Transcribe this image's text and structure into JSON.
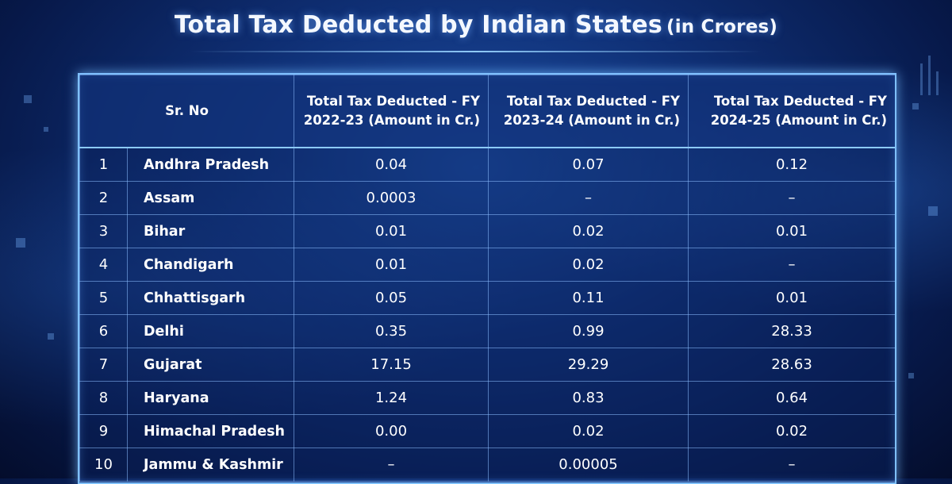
{
  "title": {
    "main": "Total Tax Deducted by Indian States",
    "suffix": "(in Crores)"
  },
  "table": {
    "header": {
      "sr_no": "Sr. No",
      "fy_2022_23": "Total Tax Deducted - FY 2022-23 (Amount in Cr.)",
      "fy_2023_24": "Total Tax Deducted - FY 2023-24 (Amount in Cr.)",
      "fy_2024_25": "Total Tax Deducted - FY 2024-25 (Amount in Cr.)"
    },
    "rows": [
      {
        "sr": "1",
        "state": "Andhra Pradesh",
        "fy_2022_23": "0.04",
        "fy_2023_24": "0.07",
        "fy_2024_25": "0.12"
      },
      {
        "sr": "2",
        "state": "Assam",
        "fy_2022_23": "0.0003",
        "fy_2023_24": "–",
        "fy_2024_25": "–"
      },
      {
        "sr": "3",
        "state": "Bihar",
        "fy_2022_23": "0.01",
        "fy_2023_24": "0.02",
        "fy_2024_25": "0.01"
      },
      {
        "sr": "4",
        "state": "Chandigarh",
        "fy_2022_23": "0.01",
        "fy_2023_24": "0.02",
        "fy_2024_25": "–"
      },
      {
        "sr": "5",
        "state": "Chhattisgarh",
        "fy_2022_23": "0.05",
        "fy_2023_24": "0.11",
        "fy_2024_25": "0.01"
      },
      {
        "sr": "6",
        "state": "Delhi",
        "fy_2022_23": "0.35",
        "fy_2023_24": "0.99",
        "fy_2024_25": "28.33"
      },
      {
        "sr": "7",
        "state": "Gujarat",
        "fy_2022_23": "17.15",
        "fy_2023_24": "29.29",
        "fy_2024_25": "28.63"
      },
      {
        "sr": "8",
        "state": "Haryana",
        "fy_2022_23": "1.24",
        "fy_2023_24": "0.83",
        "fy_2024_25": "0.64"
      },
      {
        "sr": "9",
        "state": "Himachal Pradesh",
        "fy_2022_23": "0.00",
        "fy_2023_24": "0.02",
        "fy_2024_25": "0.02"
      },
      {
        "sr": "10",
        "state": "Jammu & Kashmir",
        "fy_2022_23": "–",
        "fy_2023_24": "0.00005",
        "fy_2024_25": "–"
      }
    ]
  },
  "colors": {
    "background_center": "#1d4fa6",
    "background_edge": "#040d2c",
    "border_glow": "#7fc0ff",
    "text": "#ffffff"
  }
}
